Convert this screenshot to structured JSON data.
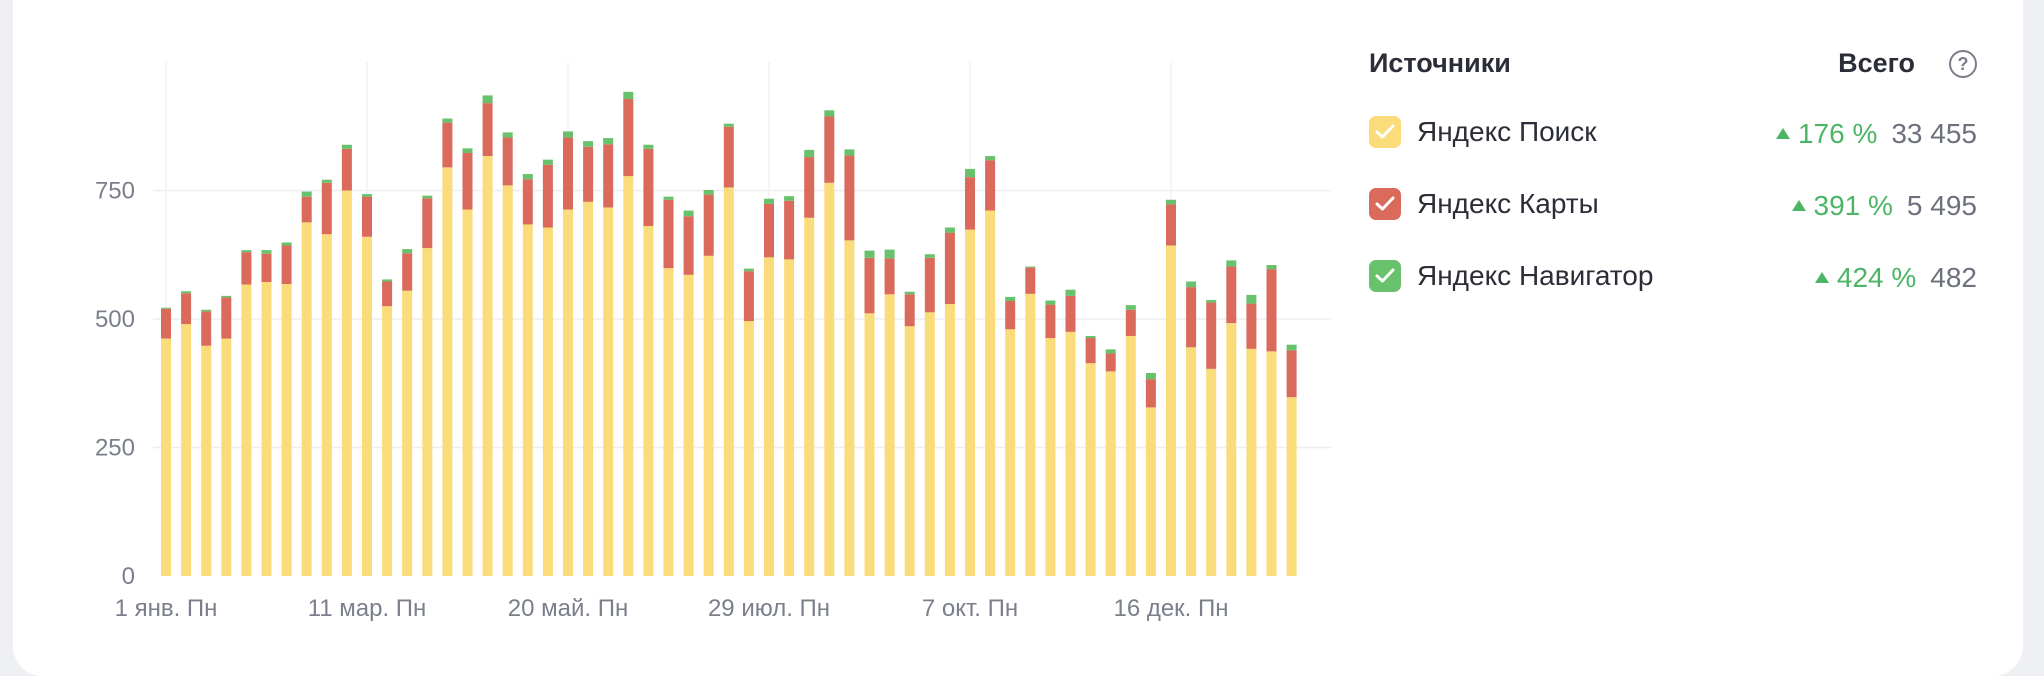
{
  "legend": {
    "header_sources": "Источники",
    "header_total": "Всего",
    "help_icon": "question-circle-icon",
    "items": [
      {
        "label": "Яндекс Поиск",
        "change": "176 %",
        "total": "33 455",
        "color": "#fbdc7a",
        "checked": true
      },
      {
        "label": "Яндекс Карты",
        "change": "391 %",
        "total": "5 495",
        "color": "#d96a5c",
        "checked": true
      },
      {
        "label": "Яндекс Навигатор",
        "change": "424 %",
        "total": "482",
        "color": "#67c26b",
        "checked": true
      }
    ]
  },
  "chart_data": {
    "type": "bar",
    "stacked": true,
    "x_tick_labels": [
      "1 янв. Пн",
      "11 мар. Пн",
      "20 май. Пн",
      "29 июл. Пн",
      "7 окт. Пн",
      "16 дек. Пн"
    ],
    "x_tick_indices": [
      0,
      10,
      20,
      30,
      40,
      50
    ],
    "y_ticks": [
      0,
      250,
      500,
      750
    ],
    "ylim": [
      0,
      1000
    ],
    "grid": true,
    "series": [
      {
        "name": "Яндекс Поиск",
        "color": "#fbdc7a",
        "values": [
          462,
          490,
          448,
          462,
          567,
          572,
          568,
          688,
          665,
          750,
          660,
          525,
          555,
          638,
          795,
          713,
          817,
          760,
          684,
          678,
          713,
          728,
          717,
          778,
          681,
          599,
          586,
          623,
          756,
          496,
          620,
          616,
          697,
          765,
          653,
          511,
          548,
          486,
          513,
          529,
          674,
          711,
          480,
          549,
          463,
          475,
          414,
          398,
          467,
          328,
          643,
          445,
          403,
          492,
          442,
          437,
          348
        ]
      },
      {
        "name": "Яндекс Карты",
        "color": "#d96a5c",
        "values": [
          58,
          60,
          67,
          80,
          63,
          55,
          75,
          50,
          100,
          81,
          78,
          48,
          73,
          97,
          87,
          110,
          103,
          93,
          88,
          122,
          140,
          107,
          123,
          150,
          150,
          133,
          114,
          119,
          118,
          97,
          104,
          114,
          118,
          129,
          165,
          108,
          70,
          62,
          106,
          139,
          102,
          98,
          55,
          51,
          65,
          70,
          49,
          35,
          51,
          55,
          80,
          117,
          129,
          110,
          88,
          160,
          91
        ]
      },
      {
        "name": "Яндекс Навигатор",
        "color": "#67c26b",
        "values": [
          2,
          4,
          3,
          3,
          4,
          7,
          6,
          10,
          6,
          8,
          5,
          4,
          8,
          5,
          8,
          9,
          15,
          10,
          10,
          10,
          12,
          11,
          12,
          14,
          8,
          6,
          11,
          9,
          6,
          5,
          10,
          9,
          14,
          12,
          12,
          14,
          17,
          5,
          7,
          10,
          16,
          8,
          8,
          2,
          8,
          12,
          4,
          8,
          9,
          12,
          9,
          11,
          5,
          12,
          17,
          8,
          11
        ]
      }
    ]
  }
}
